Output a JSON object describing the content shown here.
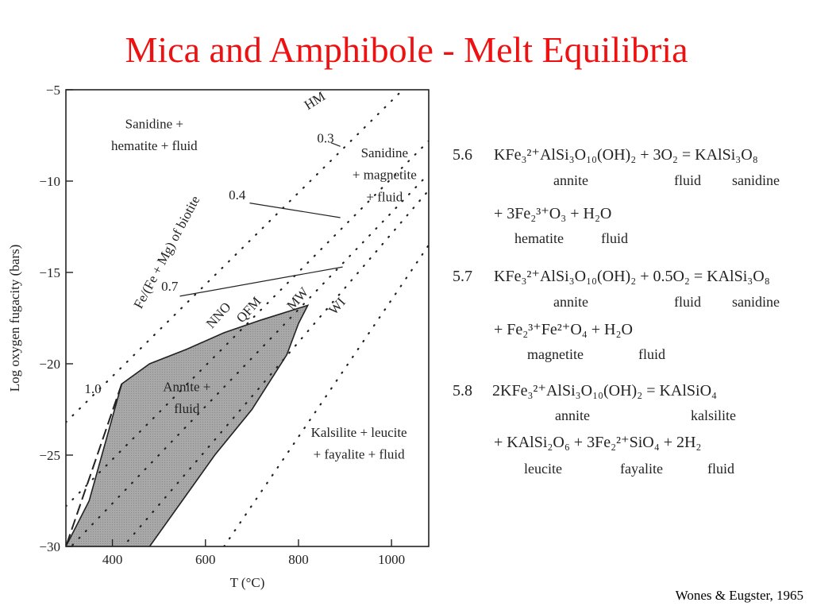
{
  "slide": {
    "title": "Mica and Amphibole - Melt Equilibria",
    "citation": "Wones & Eugster, 1965"
  },
  "chart_data": {
    "type": "line",
    "xlabel": "T (°C)",
    "ylabel": "Log oxygen fugacity (bars)",
    "xlim": [
      300,
      1080
    ],
    "ylim": [
      -30,
      -5
    ],
    "x_ticks": [
      400,
      600,
      800,
      1000
    ],
    "y_ticks": [
      -5,
      -10,
      -15,
      -20,
      -25,
      -30
    ],
    "buffers": [
      {
        "name": "HM",
        "points": [
          [
            300,
            -23.2
          ],
          [
            1080,
            -3.6
          ]
        ]
      },
      {
        "name": "NNO",
        "points": [
          [
            300,
            -27.8
          ],
          [
            1080,
            -7.8
          ]
        ]
      },
      {
        "name": "QFM",
        "points": [
          [
            300,
            -30.3
          ],
          [
            1080,
            -9.6
          ]
        ]
      },
      {
        "name": "MW",
        "points": [
          [
            420,
            -30.1
          ],
          [
            1080,
            -10.5
          ]
        ]
      },
      {
        "name": "WI",
        "points": [
          [
            640,
            -30.0
          ],
          [
            1080,
            -13.5
          ]
        ]
      }
    ],
    "annite_field": {
      "label": "Annite + fluid",
      "boundary": [
        [
          300,
          -30
        ],
        [
          350,
          -27.5
        ],
        [
          420,
          -21.1
        ],
        [
          480,
          -20
        ],
        [
          560,
          -19.2
        ],
        [
          640,
          -18.3
        ],
        [
          720,
          -17.6
        ],
        [
          820,
          -16.8
        ],
        [
          800,
          -17.8
        ],
        [
          775,
          -19.5
        ],
        [
          700,
          -22.5
        ],
        [
          620,
          -25
        ],
        [
          550,
          -27.5
        ],
        [
          480,
          -30
        ]
      ]
    },
    "composition_contours": {
      "label": "Fe/(Fe + Mg) of biotite",
      "contours": [
        {
          "label": "1.0",
          "points": [
            [
              420,
              -21.1
            ],
            [
              300,
              -30
            ]
          ]
        },
        {
          "label": "0.7",
          "points": [
            [
              545,
              -16.3
            ],
            [
              895,
              -14.7
            ]
          ]
        },
        {
          "label": "0.4",
          "points": [
            [
              695,
              -11.2
            ],
            [
              890,
              -12.0
            ]
          ]
        },
        {
          "label": "0.3",
          "points": [
            [
              870,
              -7.9
            ],
            [
              890,
              -8.1
            ]
          ]
        }
      ]
    },
    "field_labels": [
      {
        "text": "Sanidine +",
        "x": 490,
        "y": -7.1
      },
      {
        "text": "hematite + fluid",
        "x": 490,
        "y": -8.3
      },
      {
        "text": "Sanidine",
        "x": 985,
        "y": -8.7
      },
      {
        "text": "+ magnetite",
        "x": 985,
        "y": -9.9
      },
      {
        "text": "+ fluid",
        "x": 985,
        "y": -11.1
      },
      {
        "text": "Kalsilite + leucite",
        "x": 930,
        "y": -24.0
      },
      {
        "text": "+ fayalite + fluid",
        "x": 930,
        "y": -25.2
      }
    ]
  },
  "reactions": {
    "r56": {
      "num": "5.6",
      "line1": "KFe₃²⁺AlSi₃O₁₀(OH)₂ + 3O₂ = KAlSi₃O₈",
      "sub1": [
        "annite",
        "fluid",
        "sanidine"
      ],
      "line2": "+ 3Fe₂³⁺O₃ + H₂O",
      "sub2": [
        "hematite",
        "fluid"
      ]
    },
    "r57": {
      "num": "5.7",
      "line1": "KFe₃²⁺AlSi₃O₁₀(OH)₂ + 0.5O₂ = KAlSi₃O₈",
      "sub1": [
        "annite",
        "fluid",
        "sanidine"
      ],
      "line2": "+ Fe₂³⁺Fe²⁺O₄ + H₂O",
      "sub2": [
        "magnetite",
        "fluid"
      ]
    },
    "r58": {
      "num": "5.8",
      "line1": "2KFe₃²⁺AlSi₃O₁₀(OH)₂ = KAlSiO₄",
      "sub1": [
        "annite",
        "kalsilite"
      ],
      "line2": "+ KAlSi₂O₆ + 3Fe₂²⁺SiO₄ + 2H₂",
      "sub2": [
        "leucite",
        "fayalite",
        "fluid"
      ]
    }
  },
  "colors": {
    "title": "#ee1111",
    "field_fill": "#a8a8a8",
    "ink": "#222222"
  }
}
